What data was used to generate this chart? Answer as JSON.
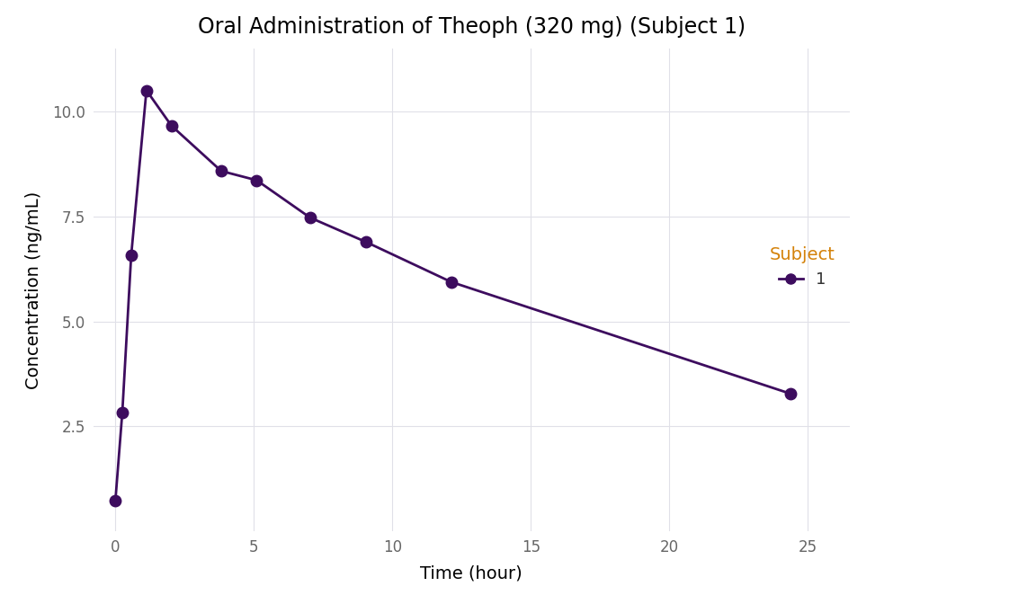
{
  "title": "Oral Administration of Theoph (320 mg) (Subject 1)",
  "xlabel": "Time (hour)",
  "ylabel": "Concentration (ng/mL)",
  "time": [
    0.0,
    0.25,
    0.57,
    1.12,
    2.02,
    3.82,
    5.1,
    7.03,
    9.05,
    12.12,
    24.37
  ],
  "conc": [
    0.74,
    2.84,
    6.57,
    10.5,
    9.66,
    8.58,
    8.36,
    7.47,
    6.89,
    5.94,
    3.28
  ],
  "line_color": "#3D0C5E",
  "marker_color": "#3D0C5E",
  "marker_size": 9,
  "line_width": 2.0,
  "legend_title": "Subject",
  "legend_title_color": "#D4820A",
  "legend_label": "1",
  "legend_label_color": "#333333",
  "xlim": [
    -0.8,
    26.5
  ],
  "ylim": [
    0.0,
    11.5
  ],
  "xticks": [
    0,
    5,
    10,
    15,
    20,
    25
  ],
  "yticks": [
    2.5,
    5.0,
    7.5,
    10.0
  ],
  "background_color": "#ffffff",
  "panel_color": "#ffffff",
  "grid_color": "#e0e0e8",
  "title_fontsize": 17,
  "label_fontsize": 14,
  "tick_fontsize": 12,
  "legend_fontsize": 13,
  "legend_title_fontsize": 14
}
